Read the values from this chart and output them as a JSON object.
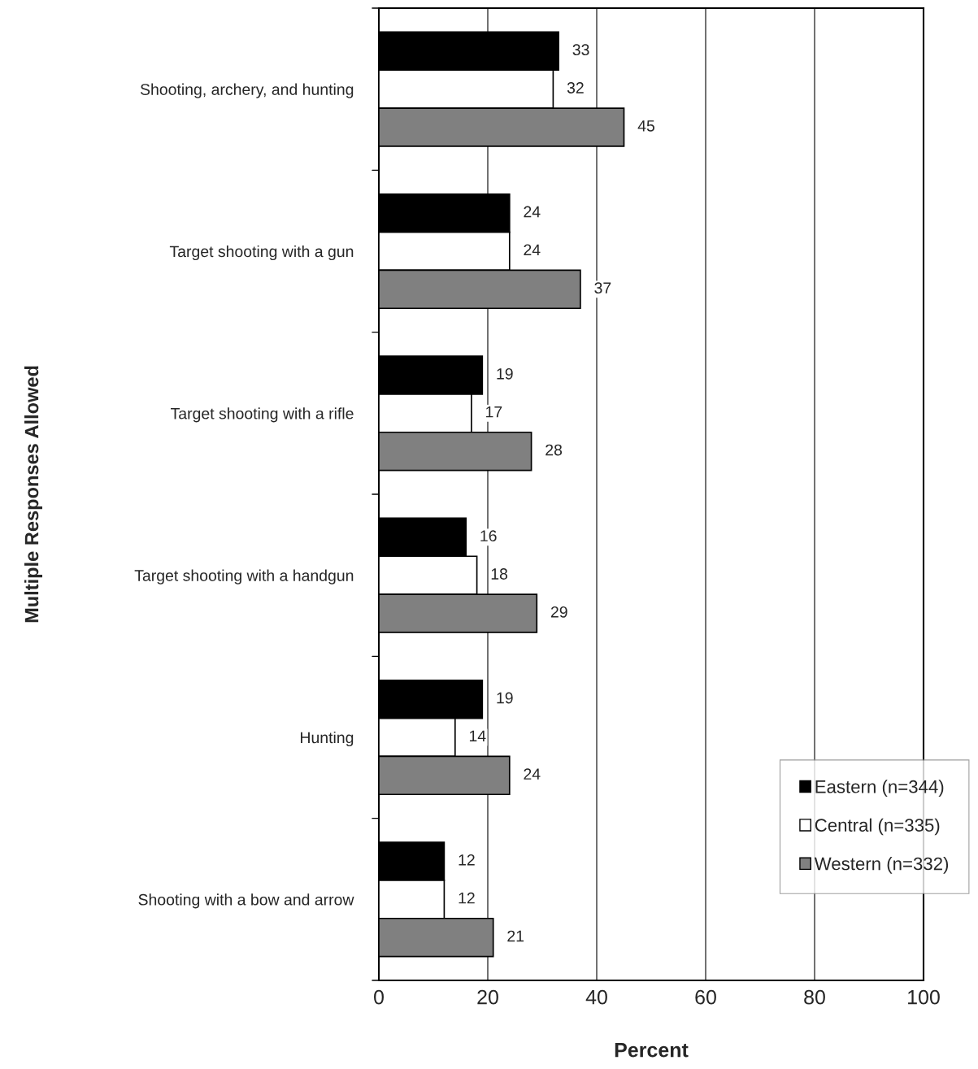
{
  "chart_data": {
    "type": "bar",
    "orientation": "horizontal",
    "xlabel": "Percent",
    "ylabel": "Multiple Responses Allowed",
    "categories": [
      "Shooting, archery, and hunting",
      "Target shooting with a gun",
      "Target shooting with a rifle",
      "Target shooting with a handgun",
      "Hunting",
      "Shooting with a bow and arrow"
    ],
    "series": [
      {
        "name": "Eastern (n=344)",
        "color": "#000000",
        "values": [
          33,
          24,
          19,
          16,
          19,
          12
        ]
      },
      {
        "name": "Central (n=335)",
        "color": "#ffffff",
        "values": [
          32,
          24,
          17,
          18,
          14,
          12
        ]
      },
      {
        "name": "Western (n=332)",
        "color": "#808080",
        "values": [
          45,
          37,
          28,
          29,
          24,
          21
        ]
      }
    ],
    "xlim": [
      0,
      100
    ],
    "xticks": [
      0,
      20,
      40,
      60,
      80,
      100
    ],
    "grid": "x",
    "legend": "bottom right",
    "data_labels": true
  }
}
